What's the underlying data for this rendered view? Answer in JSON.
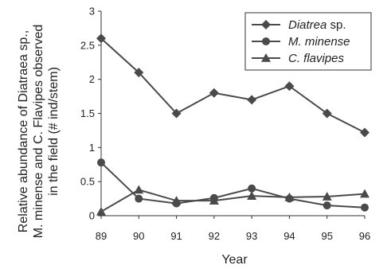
{
  "chart_data": {
    "type": "line",
    "title": "",
    "xlabel": "Year",
    "ylabel_lines": [
      "Relative abundance of Diatraea sp.,",
      "M. minense and C. Flavipes observed",
      "in the field (# ind/stem)"
    ],
    "x": [
      89,
      90,
      91,
      92,
      93,
      94,
      95,
      96
    ],
    "xlim": [
      89,
      96
    ],
    "ylim": [
      0,
      3
    ],
    "y_ticks": [
      0,
      0.5,
      1,
      1.5,
      2,
      2.5,
      3
    ],
    "y_tick_labels": [
      "0",
      "0.5",
      "1",
      "1.5",
      "2",
      "2.5",
      "3"
    ],
    "grid": false,
    "legend_position": "top-right",
    "series": [
      {
        "name": "Diatrea sp.",
        "marker": "diamond",
        "values": [
          2.6,
          2.1,
          1.5,
          1.8,
          1.7,
          1.9,
          1.5,
          1.22
        ]
      },
      {
        "name": "M. minense",
        "marker": "circle",
        "values": [
          0.78,
          0.25,
          0.18,
          0.26,
          0.4,
          0.25,
          0.15,
          0.12
        ]
      },
      {
        "name": "C. flavipes",
        "marker": "triangle",
        "values": [
          0.06,
          0.38,
          0.22,
          0.22,
          0.29,
          0.27,
          0.28,
          0.32
        ]
      }
    ],
    "colors": {
      "line": "#4a4a4a",
      "marker": "#4a4a4a",
      "axis": "#333333"
    }
  }
}
